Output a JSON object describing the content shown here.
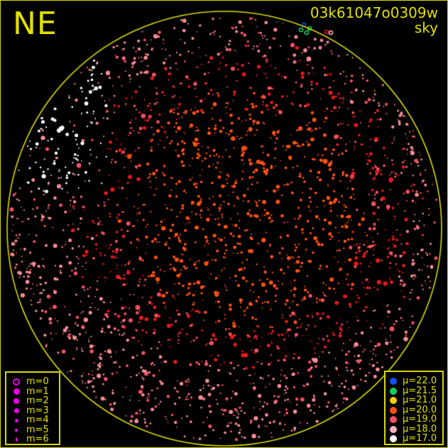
{
  "header": {
    "direction": "NE",
    "frame_id": "03k61047o0309w",
    "image_type": "sky"
  },
  "colors": {
    "frame": "#d8d800",
    "text": "#e0e000",
    "magnitude_symbol": "#ee00ee"
  },
  "magnitude_legend": [
    {
      "label": "m=0",
      "style": "ring"
    },
    {
      "label": "m=1"
    },
    {
      "label": "m=2"
    },
    {
      "label": "m=3"
    },
    {
      "label": "m=4"
    },
    {
      "label": "m=5"
    },
    {
      "label": "m=6"
    }
  ],
  "brightness_legend": [
    {
      "label": "μ=22.0",
      "color": "#1650f0"
    },
    {
      "label": "μ=21.5",
      "color": "#10d060"
    },
    {
      "label": "μ=21.0",
      "color": "#f0d000"
    },
    {
      "label": "μ=20.0",
      "color": "#ff5010"
    },
    {
      "label": "μ=19.0",
      "color": "#f05060"
    },
    {
      "label": "μ=18.0",
      "color": "#ffb0c0"
    },
    {
      "label": "μ=17.0",
      "color": "#ffffff"
    }
  ]
}
